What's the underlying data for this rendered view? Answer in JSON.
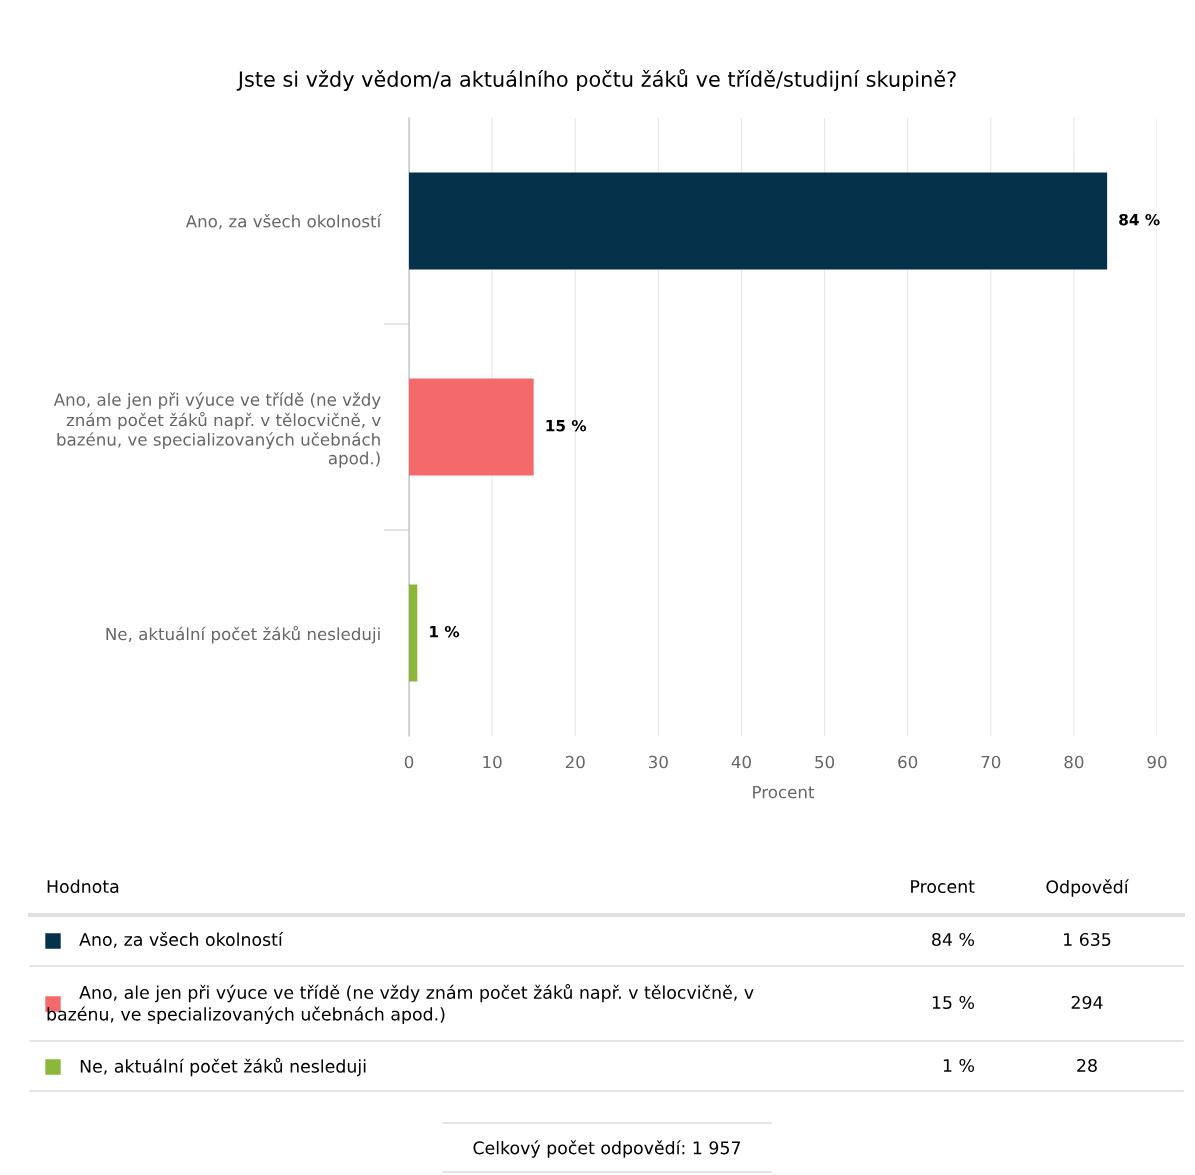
{
  "chart_data": {
    "type": "bar",
    "orientation": "horizontal",
    "title": "Jste si vždy vědom/a aktuálního počtu žáků ve třídě/studijní skupině?",
    "categories": [
      "Ano, za všech okolností",
      "Ano, ale jen při výuce ve třídě (ne vždy znám počet žáků např. v tělocvičně, v bazénu, ve specializovaných učebnách apod.)",
      "Ne, aktuální počet žáků nesleduji"
    ],
    "values": [
      84,
      15,
      1
    ],
    "colors": [
      "#05324a",
      "#f4696b",
      "#8bb83a"
    ],
    "value_labels": [
      "84 %",
      "15 %",
      "1 %"
    ],
    "xlabel": "Procent",
    "xlim": [
      0,
      90
    ],
    "xticks": [
      0,
      10,
      20,
      30,
      40,
      50,
      60,
      70,
      80,
      90
    ],
    "grid": "x",
    "legend": false,
    "annotations": [
      "Hodnota",
      "Procent",
      "Odpovědí",
      "1 635",
      "294",
      "28",
      "Celkový počet odpovědí: 1 957"
    ]
  }
}
